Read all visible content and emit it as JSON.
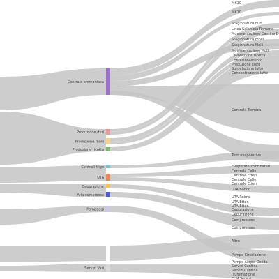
{
  "diagram": {
    "type": "sankey",
    "link_color": "#c4c4c4",
    "middle_nodes": [
      {
        "id": "centrale_ammoniaca",
        "label": "Centrale ammoniaca",
        "color": "#9b72c8"
      },
      {
        "id": "produzione_duri",
        "label": "Produzione duri",
        "color": "#e79b9b"
      },
      {
        "id": "produzione_molli",
        "label": "Produzione molli",
        "color": "#f2d28a"
      },
      {
        "id": "produzione_ricotta",
        "label": "Produzione ricotta",
        "color": "#7cb86d"
      },
      {
        "id": "centrali_frigo",
        "label": "Centrali frigo",
        "color": "#6fc6d9"
      },
      {
        "id": "uta",
        "label": "UTA",
        "color": "#e8875f"
      },
      {
        "id": "depurazione",
        "label": "Depurazione",
        "color": "#f0c35e"
      },
      {
        "id": "aria_compressa",
        "label": "Aria compressa",
        "color": "#4f5cc8"
      },
      {
        "id": "pompaggi",
        "label": "Pompaggi",
        "color": "#c9c9e6"
      },
      {
        "id": "servizi_vari",
        "label": "Servizi Vari",
        "color": "#d9d9d9"
      }
    ],
    "right_labels": [
      "MK10",
      "MK10",
      "Stagionatura duri",
      "Linea Salamoia Romano",
      "Movimentazione Cantina Duri",
      "Stagionatura molli",
      "Stagionatura Molli",
      "Movimentazione Molli",
      "Lavorazione ricotta",
      "Confezionamento",
      "Produzione siero",
      "Sorgelazione latte",
      "Concentrazione latte",
      "Centrale Termica",
      "Torri evaporative",
      "Evaporatori/Sbrinatori",
      "Centrale Celle",
      "Centrale Etten",
      "Centrale Celle",
      "Centrale Etten",
      "UTA Banco",
      "UTA Reims",
      "UTA Etten",
      "UTA Etten",
      "Depurazione",
      "Depurazione",
      "Compressore",
      "Compressore",
      "Altro",
      "Pompe Circolazione",
      "Pompe Acqua Gelida",
      "Servizi Cantina",
      "Servizi Cantina",
      "Illuminazione",
      "ELM Servizi"
    ]
  }
}
